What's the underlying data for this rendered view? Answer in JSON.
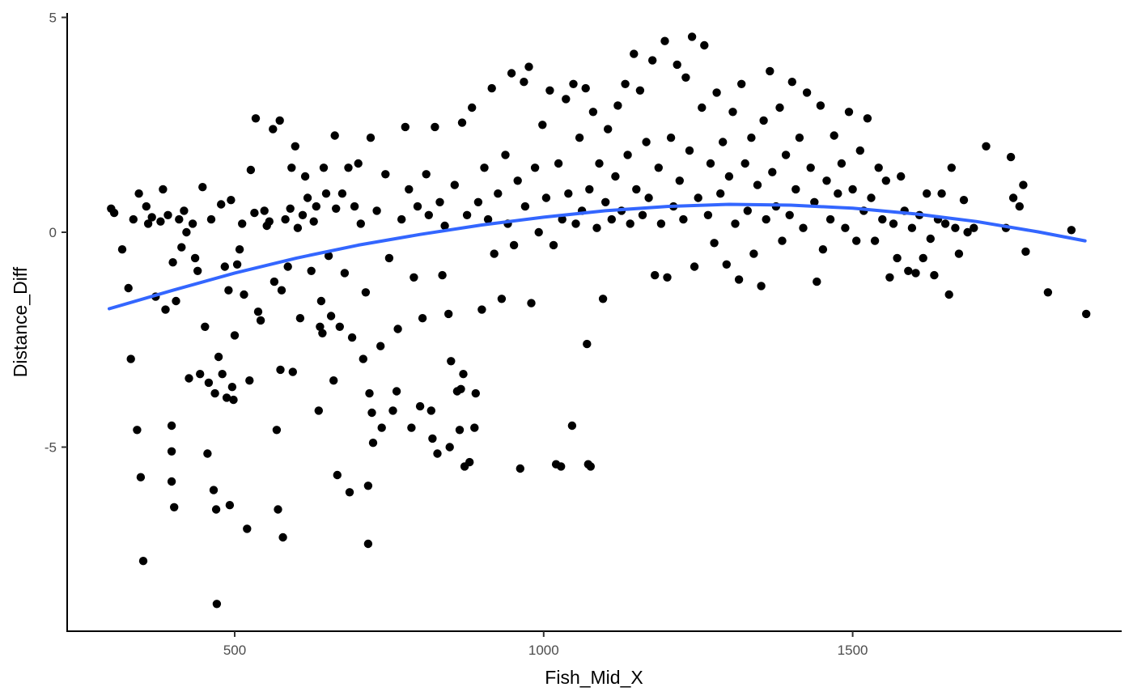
{
  "chart_data": {
    "type": "scatter",
    "xlabel": "Fish_Mid_X",
    "ylabel": "Distance_Diff",
    "xlim": [
      230,
      1905
    ],
    "ylim": [
      -9.3,
      5.2
    ],
    "x_ticks": [
      500,
      1000,
      1500
    ],
    "y_ticks": [
      -5,
      0,
      5
    ],
    "grid": false,
    "colors": {
      "points": "#000000",
      "smooth": "#3366FF",
      "axis": "#000000"
    },
    "points": [
      {
        "x": 300,
        "y": 0.55
      },
      {
        "x": 305,
        "y": 0.45
      },
      {
        "x": 318,
        "y": -0.4
      },
      {
        "x": 328,
        "y": -1.3
      },
      {
        "x": 332,
        "y": -2.95
      },
      {
        "x": 336,
        "y": 0.3
      },
      {
        "x": 342,
        "y": -4.6
      },
      {
        "x": 348,
        "y": -5.7
      },
      {
        "x": 345,
        "y": 0.9
      },
      {
        "x": 352,
        "y": -7.65
      },
      {
        "x": 357,
        "y": 0.6
      },
      {
        "x": 360,
        "y": 0.2
      },
      {
        "x": 366,
        "y": 0.35
      },
      {
        "x": 372,
        "y": -1.5
      },
      {
        "x": 380,
        "y": 0.25
      },
      {
        "x": 384,
        "y": 1.0
      },
      {
        "x": 388,
        "y": -1.8
      },
      {
        "x": 392,
        "y": 0.4
      },
      {
        "x": 398,
        "y": -4.5
      },
      {
        "x": 398,
        "y": -5.1
      },
      {
        "x": 398,
        "y": -5.8
      },
      {
        "x": 400,
        "y": -0.7
      },
      {
        "x": 402,
        "y": -6.4
      },
      {
        "x": 405,
        "y": -1.6
      },
      {
        "x": 410,
        "y": 0.3
      },
      {
        "x": 414,
        "y": -0.35
      },
      {
        "x": 418,
        "y": 0.5
      },
      {
        "x": 422,
        "y": 0.0
      },
      {
        "x": 426,
        "y": -3.4
      },
      {
        "x": 432,
        "y": 0.2
      },
      {
        "x": 436,
        "y": -0.6
      },
      {
        "x": 440,
        "y": -0.9
      },
      {
        "x": 444,
        "y": -3.3
      },
      {
        "x": 448,
        "y": 1.05
      },
      {
        "x": 452,
        "y": -2.2
      },
      {
        "x": 456,
        "y": -5.15
      },
      {
        "x": 458,
        "y": -3.5
      },
      {
        "x": 462,
        "y": 0.3
      },
      {
        "x": 466,
        "y": -6.0
      },
      {
        "x": 468,
        "y": -3.75
      },
      {
        "x": 470,
        "y": -6.45
      },
      {
        "x": 471,
        "y": -8.65
      },
      {
        "x": 474,
        "y": -2.9
      },
      {
        "x": 478,
        "y": 0.65
      },
      {
        "x": 480,
        "y": -3.3
      },
      {
        "x": 484,
        "y": -0.8
      },
      {
        "x": 487,
        "y": -3.85
      },
      {
        "x": 490,
        "y": -1.35
      },
      {
        "x": 492,
        "y": -6.35
      },
      {
        "x": 494,
        "y": 0.75
      },
      {
        "x": 496,
        "y": -3.6
      },
      {
        "x": 498,
        "y": -3.9
      },
      {
        "x": 500,
        "y": -2.4
      },
      {
        "x": 504,
        "y": -0.75
      },
      {
        "x": 508,
        "y": -0.4
      },
      {
        "x": 512,
        "y": 0.2
      },
      {
        "x": 515,
        "y": -1.45
      },
      {
        "x": 520,
        "y": -6.9
      },
      {
        "x": 524,
        "y": -3.45
      },
      {
        "x": 526,
        "y": 1.45
      },
      {
        "x": 532,
        "y": 0.45
      },
      {
        "x": 534,
        "y": 2.65
      },
      {
        "x": 538,
        "y": -1.85
      },
      {
        "x": 542,
        "y": -2.05
      },
      {
        "x": 548,
        "y": 0.5
      },
      {
        "x": 552,
        "y": 0.15
      },
      {
        "x": 556,
        "y": 0.25
      },
      {
        "x": 562,
        "y": 2.4
      },
      {
        "x": 564,
        "y": -1.15
      },
      {
        "x": 568,
        "y": -4.6
      },
      {
        "x": 570,
        "y": -6.45
      },
      {
        "x": 573,
        "y": 2.6
      },
      {
        "x": 574,
        "y": -3.2
      },
      {
        "x": 576,
        "y": -1.35
      },
      {
        "x": 578,
        "y": -7.1
      },
      {
        "x": 582,
        "y": 0.3
      },
      {
        "x": 586,
        "y": -0.8
      },
      {
        "x": 590,
        "y": 0.55
      },
      {
        "x": 592,
        "y": 1.5
      },
      {
        "x": 594,
        "y": -3.25
      },
      {
        "x": 598,
        "y": 2.0
      },
      {
        "x": 602,
        "y": 0.1
      },
      {
        "x": 606,
        "y": -2.0
      },
      {
        "x": 610,
        "y": 0.4
      },
      {
        "x": 614,
        "y": 1.3
      },
      {
        "x": 618,
        "y": 0.8
      },
      {
        "x": 624,
        "y": -0.9
      },
      {
        "x": 628,
        "y": 0.25
      },
      {
        "x": 632,
        "y": 0.6
      },
      {
        "x": 636,
        "y": -4.15
      },
      {
        "x": 638,
        "y": -2.2
      },
      {
        "x": 640,
        "y": -1.6
      },
      {
        "x": 642,
        "y": -2.35
      },
      {
        "x": 644,
        "y": 1.5
      },
      {
        "x": 648,
        "y": 0.9
      },
      {
        "x": 652,
        "y": -0.55
      },
      {
        "x": 656,
        "y": -1.95
      },
      {
        "x": 660,
        "y": -3.45
      },
      {
        "x": 662,
        "y": 2.25
      },
      {
        "x": 664,
        "y": 0.55
      },
      {
        "x": 666,
        "y": -5.65
      },
      {
        "x": 670,
        "y": -2.2
      },
      {
        "x": 674,
        "y": 0.9
      },
      {
        "x": 678,
        "y": -0.95
      },
      {
        "x": 684,
        "y": 1.5
      },
      {
        "x": 686,
        "y": -6.05
      },
      {
        "x": 690,
        "y": -2.45
      },
      {
        "x": 694,
        "y": 0.6
      },
      {
        "x": 700,
        "y": 1.6
      },
      {
        "x": 704,
        "y": 0.2
      },
      {
        "x": 708,
        "y": -2.95
      },
      {
        "x": 712,
        "y": -1.4
      },
      {
        "x": 716,
        "y": -5.9
      },
      {
        "x": 716,
        "y": -7.25
      },
      {
        "x": 718,
        "y": -3.75
      },
      {
        "x": 720,
        "y": 2.2
      },
      {
        "x": 722,
        "y": -4.2
      },
      {
        "x": 724,
        "y": -4.9
      },
      {
        "x": 730,
        "y": 0.5
      },
      {
        "x": 736,
        "y": -2.65
      },
      {
        "x": 738,
        "y": -4.55
      },
      {
        "x": 744,
        "y": 1.35
      },
      {
        "x": 750,
        "y": -0.6
      },
      {
        "x": 756,
        "y": -4.15
      },
      {
        "x": 762,
        "y": -3.7
      },
      {
        "x": 764,
        "y": -2.25
      },
      {
        "x": 770,
        "y": 0.3
      },
      {
        "x": 776,
        "y": 2.45
      },
      {
        "x": 782,
        "y": 1.0
      },
      {
        "x": 786,
        "y": -4.55
      },
      {
        "x": 790,
        "y": -1.05
      },
      {
        "x": 796,
        "y": 0.6
      },
      {
        "x": 800,
        "y": -4.05
      },
      {
        "x": 804,
        "y": -2.0
      },
      {
        "x": 810,
        "y": 1.35
      },
      {
        "x": 814,
        "y": 0.4
      },
      {
        "x": 818,
        "y": -4.15
      },
      {
        "x": 820,
        "y": -4.8
      },
      {
        "x": 824,
        "y": 2.45
      },
      {
        "x": 828,
        "y": -5.15
      },
      {
        "x": 832,
        "y": 0.7
      },
      {
        "x": 836,
        "y": -1.0
      },
      {
        "x": 840,
        "y": 0.15
      },
      {
        "x": 846,
        "y": -1.9
      },
      {
        "x": 848,
        "y": -5.0
      },
      {
        "x": 850,
        "y": -3.0
      },
      {
        "x": 856,
        "y": 1.1
      },
      {
        "x": 860,
        "y": -3.7
      },
      {
        "x": 864,
        "y": -4.6
      },
      {
        "x": 866,
        "y": -3.65
      },
      {
        "x": 868,
        "y": 2.55
      },
      {
        "x": 870,
        "y": -3.3
      },
      {
        "x": 872,
        "y": -5.45
      },
      {
        "x": 876,
        "y": 0.4
      },
      {
        "x": 880,
        "y": -5.35
      },
      {
        "x": 884,
        "y": 2.9
      },
      {
        "x": 888,
        "y": -4.55
      },
      {
        "x": 890,
        "y": -3.75
      },
      {
        "x": 894,
        "y": 0.7
      },
      {
        "x": 900,
        "y": -1.8
      },
      {
        "x": 904,
        "y": 1.5
      },
      {
        "x": 910,
        "y": 0.3
      },
      {
        "x": 916,
        "y": 3.35
      },
      {
        "x": 920,
        "y": -0.5
      },
      {
        "x": 926,
        "y": 0.9
      },
      {
        "x": 932,
        "y": -1.55
      },
      {
        "x": 938,
        "y": 1.8
      },
      {
        "x": 942,
        "y": 0.2
      },
      {
        "x": 948,
        "y": 3.7
      },
      {
        "x": 952,
        "y": -0.3
      },
      {
        "x": 958,
        "y": 1.2
      },
      {
        "x": 962,
        "y": -5.5
      },
      {
        "x": 968,
        "y": 3.5
      },
      {
        "x": 970,
        "y": 0.6
      },
      {
        "x": 976,
        "y": 3.85
      },
      {
        "x": 980,
        "y": -1.65
      },
      {
        "x": 986,
        "y": 1.5
      },
      {
        "x": 992,
        "y": 0.0
      },
      {
        "x": 998,
        "y": 2.5
      },
      {
        "x": 1004,
        "y": 0.8
      },
      {
        "x": 1010,
        "y": 3.3
      },
      {
        "x": 1016,
        "y": -0.3
      },
      {
        "x": 1020,
        "y": -5.4
      },
      {
        "x": 1024,
        "y": 1.6
      },
      {
        "x": 1028,
        "y": -5.45
      },
      {
        "x": 1030,
        "y": 0.3
      },
      {
        "x": 1036,
        "y": 3.1
      },
      {
        "x": 1040,
        "y": 0.9
      },
      {
        "x": 1046,
        "y": -4.5
      },
      {
        "x": 1048,
        "y": 3.45
      },
      {
        "x": 1052,
        "y": 0.2
      },
      {
        "x": 1058,
        "y": 2.2
      },
      {
        "x": 1062,
        "y": 0.5
      },
      {
        "x": 1068,
        "y": 3.35
      },
      {
        "x": 1070,
        "y": -2.6
      },
      {
        "x": 1072,
        "y": -5.4
      },
      {
        "x": 1074,
        "y": 1.0
      },
      {
        "x": 1076,
        "y": -5.45
      },
      {
        "x": 1080,
        "y": 2.8
      },
      {
        "x": 1086,
        "y": 0.1
      },
      {
        "x": 1090,
        "y": 1.6
      },
      {
        "x": 1096,
        "y": -1.55
      },
      {
        "x": 1100,
        "y": 0.7
      },
      {
        "x": 1104,
        "y": 2.4
      },
      {
        "x": 1110,
        "y": 0.3
      },
      {
        "x": 1116,
        "y": 1.3
      },
      {
        "x": 1120,
        "y": 2.95
      },
      {
        "x": 1126,
        "y": 0.5
      },
      {
        "x": 1132,
        "y": 3.45
      },
      {
        "x": 1136,
        "y": 1.8
      },
      {
        "x": 1140,
        "y": 0.2
      },
      {
        "x": 1146,
        "y": 4.15
      },
      {
        "x": 1150,
        "y": 1.0
      },
      {
        "x": 1156,
        "y": 3.3
      },
      {
        "x": 1160,
        "y": 0.4
      },
      {
        "x": 1166,
        "y": 2.1
      },
      {
        "x": 1170,
        "y": 0.8
      },
      {
        "x": 1176,
        "y": 4.0
      },
      {
        "x": 1180,
        "y": -1.0
      },
      {
        "x": 1186,
        "y": 1.5
      },
      {
        "x": 1190,
        "y": 0.2
      },
      {
        "x": 1196,
        "y": 4.45
      },
      {
        "x": 1200,
        "y": -1.05
      },
      {
        "x": 1206,
        "y": 2.2
      },
      {
        "x": 1210,
        "y": 0.6
      },
      {
        "x": 1216,
        "y": 3.9
      },
      {
        "x": 1220,
        "y": 1.2
      },
      {
        "x": 1226,
        "y": 0.3
      },
      {
        "x": 1230,
        "y": 3.6
      },
      {
        "x": 1236,
        "y": 1.9
      },
      {
        "x": 1240,
        "y": 4.55
      },
      {
        "x": 1244,
        "y": -0.8
      },
      {
        "x": 1250,
        "y": 0.8
      },
      {
        "x": 1256,
        "y": 2.9
      },
      {
        "x": 1260,
        "y": 4.35
      },
      {
        "x": 1266,
        "y": 0.4
      },
      {
        "x": 1270,
        "y": 1.6
      },
      {
        "x": 1276,
        "y": -0.25
      },
      {
        "x": 1280,
        "y": 3.25
      },
      {
        "x": 1286,
        "y": 0.9
      },
      {
        "x": 1290,
        "y": 2.1
      },
      {
        "x": 1296,
        "y": -0.75
      },
      {
        "x": 1300,
        "y": 1.3
      },
      {
        "x": 1306,
        "y": 2.8
      },
      {
        "x": 1310,
        "y": 0.2
      },
      {
        "x": 1316,
        "y": -1.1
      },
      {
        "x": 1320,
        "y": 3.45
      },
      {
        "x": 1326,
        "y": 1.6
      },
      {
        "x": 1330,
        "y": 0.5
      },
      {
        "x": 1336,
        "y": 2.2
      },
      {
        "x": 1340,
        "y": -0.5
      },
      {
        "x": 1346,
        "y": 1.1
      },
      {
        "x": 1352,
        "y": -1.25
      },
      {
        "x": 1356,
        "y": 2.6
      },
      {
        "x": 1360,
        "y": 0.3
      },
      {
        "x": 1366,
        "y": 3.75
      },
      {
        "x": 1370,
        "y": 1.4
      },
      {
        "x": 1376,
        "y": 0.6
      },
      {
        "x": 1382,
        "y": 2.9
      },
      {
        "x": 1386,
        "y": -0.2
      },
      {
        "x": 1392,
        "y": 1.8
      },
      {
        "x": 1398,
        "y": 0.4
      },
      {
        "x": 1402,
        "y": 3.5
      },
      {
        "x": 1408,
        "y": 1.0
      },
      {
        "x": 1414,
        "y": 2.2
      },
      {
        "x": 1420,
        "y": 0.1
      },
      {
        "x": 1426,
        "y": 3.25
      },
      {
        "x": 1432,
        "y": 1.5
      },
      {
        "x": 1438,
        "y": 0.7
      },
      {
        "x": 1442,
        "y": -1.15
      },
      {
        "x": 1448,
        "y": 2.95
      },
      {
        "x": 1452,
        "y": -0.4
      },
      {
        "x": 1458,
        "y": 1.2
      },
      {
        "x": 1464,
        "y": 0.3
      },
      {
        "x": 1470,
        "y": 2.25
      },
      {
        "x": 1476,
        "y": 0.9
      },
      {
        "x": 1482,
        "y": 1.6
      },
      {
        "x": 1488,
        "y": 0.1
      },
      {
        "x": 1494,
        "y": 2.8
      },
      {
        "x": 1500,
        "y": 1.0
      },
      {
        "x": 1506,
        "y": -0.2
      },
      {
        "x": 1512,
        "y": 1.9
      },
      {
        "x": 1518,
        "y": 0.5
      },
      {
        "x": 1524,
        "y": 2.65
      },
      {
        "x": 1530,
        "y": 0.8
      },
      {
        "x": 1536,
        "y": -0.2
      },
      {
        "x": 1542,
        "y": 1.5
      },
      {
        "x": 1548,
        "y": 0.3
      },
      {
        "x": 1554,
        "y": 1.2
      },
      {
        "x": 1560,
        "y": -1.05
      },
      {
        "x": 1566,
        "y": 0.2
      },
      {
        "x": 1572,
        "y": -0.6
      },
      {
        "x": 1578,
        "y": 1.3
      },
      {
        "x": 1584,
        "y": 0.5
      },
      {
        "x": 1590,
        "y": -0.9
      },
      {
        "x": 1596,
        "y": 0.1
      },
      {
        "x": 1602,
        "y": -0.95
      },
      {
        "x": 1608,
        "y": 0.4
      },
      {
        "x": 1614,
        "y": -0.6
      },
      {
        "x": 1620,
        "y": 0.9
      },
      {
        "x": 1626,
        "y": -0.15
      },
      {
        "x": 1632,
        "y": -1.0
      },
      {
        "x": 1638,
        "y": 0.3
      },
      {
        "x": 1644,
        "y": 0.9
      },
      {
        "x": 1650,
        "y": 0.2
      },
      {
        "x": 1656,
        "y": -1.45
      },
      {
        "x": 1660,
        "y": 1.5
      },
      {
        "x": 1666,
        "y": 0.1
      },
      {
        "x": 1672,
        "y": -0.5
      },
      {
        "x": 1680,
        "y": 0.75
      },
      {
        "x": 1686,
        "y": 0.0
      },
      {
        "x": 1696,
        "y": 0.1
      },
      {
        "x": 1716,
        "y": 2.0
      },
      {
        "x": 1748,
        "y": 0.1
      },
      {
        "x": 1756,
        "y": 1.75
      },
      {
        "x": 1760,
        "y": 0.8
      },
      {
        "x": 1770,
        "y": 0.6
      },
      {
        "x": 1776,
        "y": 1.1
      },
      {
        "x": 1780,
        "y": -0.45
      },
      {
        "x": 1816,
        "y": -1.4
      },
      {
        "x": 1854,
        "y": 0.05
      },
      {
        "x": 1878,
        "y": -1.9
      }
    ],
    "smooth": {
      "method": "quadratic fit",
      "x": [
        297,
        400,
        500,
        600,
        700,
        800,
        900,
        1000,
        1100,
        1200,
        1300,
        1400,
        1500,
        1600,
        1700,
        1800,
        1876
      ],
      "y": [
        -1.78,
        -1.35,
        -0.95,
        -0.6,
        -0.3,
        -0.05,
        0.17,
        0.35,
        0.5,
        0.6,
        0.65,
        0.63,
        0.56,
        0.43,
        0.25,
        0.01,
        -0.2
      ]
    }
  }
}
